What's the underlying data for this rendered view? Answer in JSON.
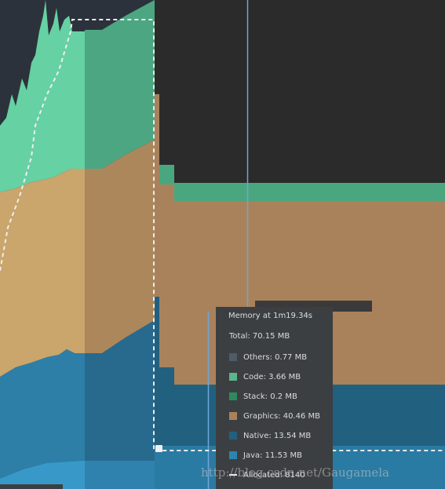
{
  "tooltip": {
    "title": "Memory at 1m19.34s",
    "total": "Total: 70.15 MB",
    "items": [
      "Others: 0.77 MB",
      "Code: 3.66 MB",
      "Stack: 0.2 MB",
      "Graphics: 40.46 MB",
      "Native: 13.54 MB",
      "Java: 11.53 MB",
      "Allocated: 8140"
    ]
  },
  "watermark": "http://blog.csdn.net/Gaugamela"
}
